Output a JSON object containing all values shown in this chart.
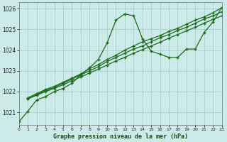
{
  "title": "Graphe pression niveau de la mer (hPa)",
  "bg_color": "#cceae8",
  "grid_color": "#aacfcc",
  "line_color": "#1a6b1a",
  "xlim": [
    0,
    23
  ],
  "ylim": [
    1020.4,
    1026.3
  ],
  "yticks": [
    1021,
    1022,
    1023,
    1024,
    1025,
    1026
  ],
  "xticks": [
    0,
    1,
    2,
    3,
    4,
    5,
    6,
    7,
    8,
    9,
    10,
    11,
    12,
    13,
    14,
    15,
    16,
    17,
    18,
    19,
    20,
    21,
    22,
    23
  ],
  "curved_x": [
    0,
    1,
    2,
    3,
    4,
    5,
    6,
    7,
    8,
    9,
    10,
    11,
    12,
    13,
    14,
    15,
    16,
    17,
    18,
    19,
    20,
    21,
    22,
    23
  ],
  "curved_y": [
    1020.55,
    1021.05,
    1021.6,
    1021.75,
    1022.0,
    1022.15,
    1022.4,
    1022.8,
    1023.15,
    1023.55,
    1024.35,
    1025.45,
    1025.75,
    1025.65,
    1024.55,
    1023.95,
    1023.8,
    1023.65,
    1023.65,
    1024.05,
    1024.05,
    1024.85,
    1025.35,
    1026.05
  ],
  "line1_x": [
    1,
    23
  ],
  "line1_y": [
    1021.7,
    1026.05
  ],
  "line2_x": [
    1,
    23
  ],
  "line2_y": [
    1021.65,
    1025.8
  ],
  "line3_x": [
    1,
    23
  ],
  "line3_y": [
    1021.65,
    1025.65
  ],
  "marker_x": [
    1,
    2,
    3,
    4,
    5,
    6,
    7,
    8,
    9,
    10,
    11,
    12,
    13,
    14,
    15,
    16,
    17,
    18,
    19,
    20,
    21,
    22,
    23
  ],
  "marker1_y": [
    1021.7,
    1021.9,
    1022.1,
    1022.25,
    1022.45,
    1022.65,
    1022.85,
    1023.1,
    1023.3,
    1023.55,
    1023.75,
    1024.0,
    1024.2,
    1024.4,
    1024.55,
    1024.7,
    1024.9,
    1025.05,
    1025.25,
    1025.45,
    1025.6,
    1025.8,
    1026.05
  ],
  "marker2_y": [
    1021.65,
    1021.85,
    1022.05,
    1022.2,
    1022.4,
    1022.6,
    1022.8,
    1023.0,
    1023.2,
    1023.45,
    1023.65,
    1023.85,
    1024.05,
    1024.2,
    1024.4,
    1024.6,
    1024.75,
    1024.95,
    1025.1,
    1025.3,
    1025.5,
    1025.65,
    1025.85
  ],
  "marker3_y": [
    1021.65,
    1021.82,
    1022.0,
    1022.15,
    1022.33,
    1022.52,
    1022.7,
    1022.9,
    1023.08,
    1023.28,
    1023.48,
    1023.65,
    1023.85,
    1024.02,
    1024.2,
    1024.38,
    1024.58,
    1024.75,
    1024.93,
    1025.1,
    1025.3,
    1025.48,
    1025.65
  ]
}
